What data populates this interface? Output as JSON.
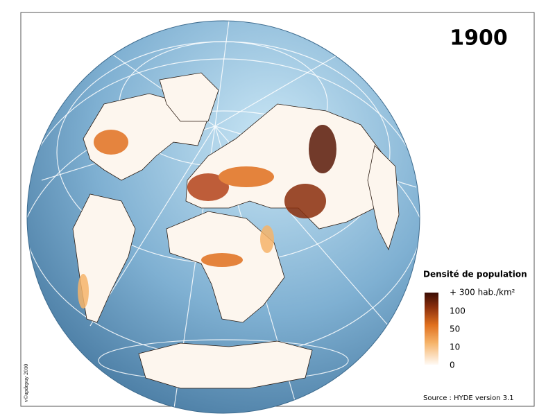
{
  "map": {
    "title": "1900",
    "legend": {
      "title": "Densité de population",
      "labels": [
        "+ 300 hab./km²",
        "100",
        "50",
        "10",
        "0"
      ]
    },
    "source": "Source : HYDE version 3.1",
    "credit": "v©apdepuy 2010"
  }
}
